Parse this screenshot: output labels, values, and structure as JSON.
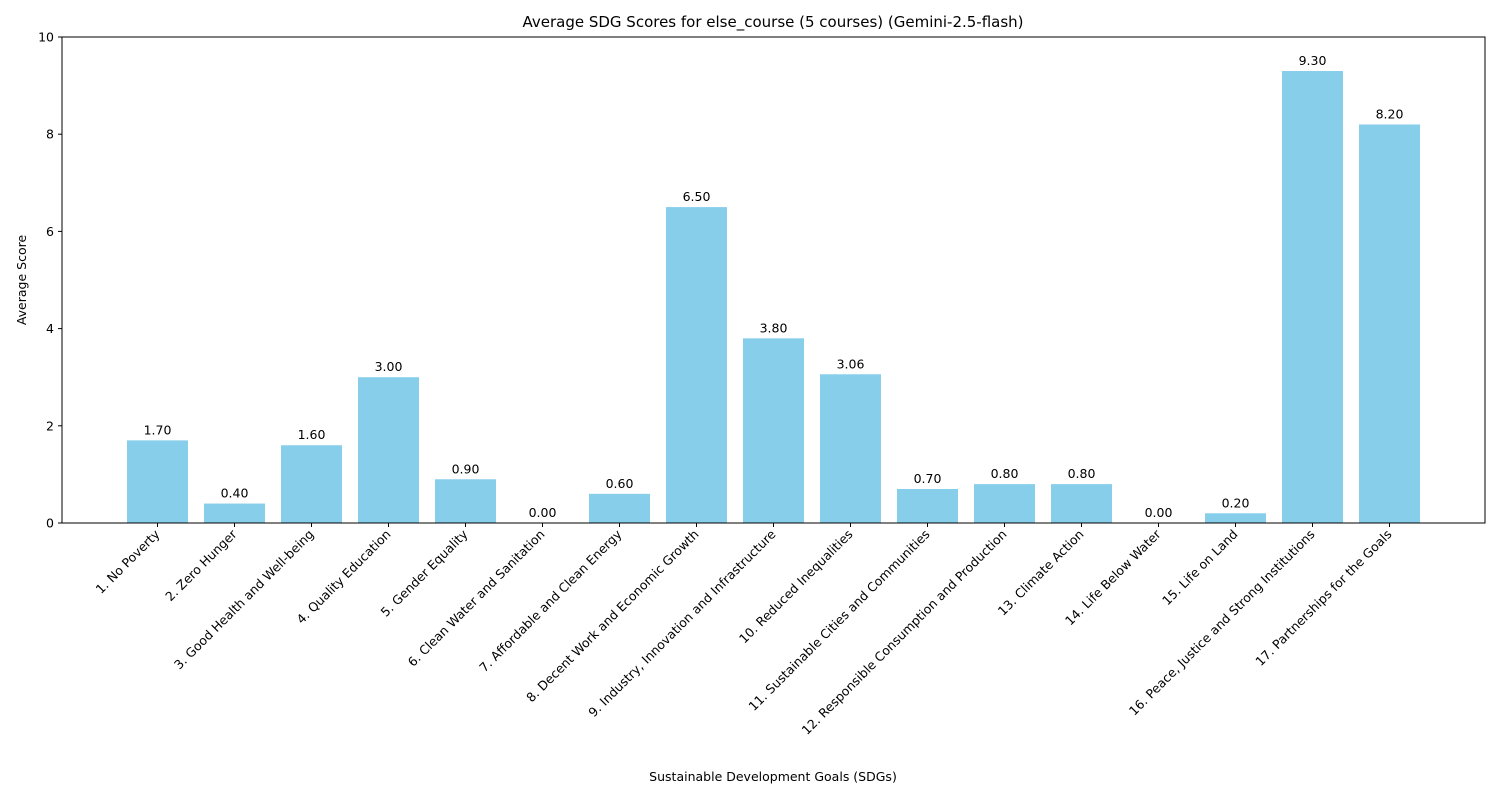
{
  "chart_data": {
    "type": "bar",
    "title": "Average SDG Scores for else_course (5 courses) (Gemini-2.5-flash)",
    "xlabel": "Sustainable Development Goals (SDGs)",
    "ylabel": "Average Score",
    "ylim": [
      0,
      10
    ],
    "yticks": [
      "0",
      "2",
      "4",
      "6",
      "8",
      "10"
    ],
    "grid": false,
    "bar_color": "#87ceeb",
    "categories": [
      "1. No Poverty",
      "2. Zero Hunger",
      "3. Good Health and Well-being",
      "4. Quality Education",
      "5. Gender Equality",
      "6. Clean Water and Sanitation",
      "7. Affordable and Clean Energy",
      "8. Decent Work and Economic Growth",
      "9. Industry, Innovation and Infrastructure",
      "10. Reduced Inequalities",
      "11. Sustainable Cities and Communities",
      "12. Responsible Consumption and Production",
      "13. Climate Action",
      "14. Life Below Water",
      "15. Life on Land",
      "16. Peace, Justice and Strong Institutions",
      "17. Partnerships for the Goals"
    ],
    "values": [
      1.7,
      0.4,
      1.6,
      3.0,
      0.9,
      0.0,
      0.6,
      6.5,
      3.8,
      3.06,
      0.7,
      0.8,
      0.8,
      0.0,
      0.2,
      9.3,
      8.2
    ],
    "value_labels": [
      "1.70",
      "0.40",
      "1.60",
      "3.00",
      "0.90",
      "0.00",
      "0.60",
      "6.50",
      "3.80",
      "3.06",
      "0.70",
      "0.80",
      "0.80",
      "0.00",
      "0.20",
      "9.30",
      "8.20"
    ]
  }
}
